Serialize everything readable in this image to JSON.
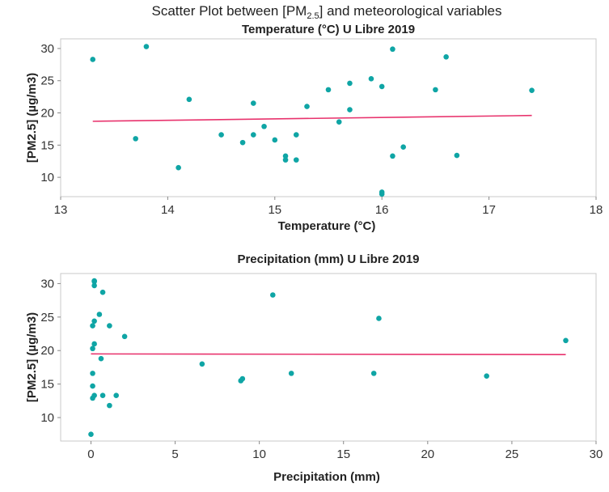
{
  "figure": {
    "title_prefix": "Scatter Plot between [PM",
    "title_subscript": "2.5",
    "title_suffix": "] and meteorological variables"
  },
  "chart_data": [
    {
      "type": "scatter",
      "title": "Temperature (°C) U Libre 2019",
      "xlabel": "Temperature (°C)",
      "ylabel": "[PM2.5] (µg/m3)",
      "xlim": [
        13,
        18
      ],
      "ylim": [
        7,
        31.5
      ],
      "xticks": [
        13,
        14,
        15,
        16,
        17,
        18
      ],
      "yticks": [
        10,
        15,
        20,
        25,
        30
      ],
      "point_color": "#0fa5a5",
      "trend_color": "#e8336d",
      "trend": {
        "x": [
          13.3,
          17.4
        ],
        "y": [
          18.7,
          19.6
        ]
      },
      "x": [
        13.3,
        13.7,
        13.8,
        14.1,
        14.2,
        14.5,
        14.7,
        14.8,
        14.8,
        14.9,
        15.0,
        15.1,
        15.1,
        15.2,
        15.2,
        15.3,
        15.5,
        15.6,
        15.7,
        15.7,
        15.9,
        16.0,
        16.0,
        16.0,
        16.1,
        16.1,
        16.2,
        16.5,
        16.6,
        16.7,
        17.4
      ],
      "y": [
        28.3,
        16.0,
        30.3,
        11.5,
        22.1,
        16.6,
        15.4,
        16.6,
        21.5,
        17.9,
        15.8,
        12.7,
        13.3,
        12.7,
        16.6,
        21.0,
        23.6,
        18.6,
        24.6,
        20.5,
        25.3,
        7.4,
        7.7,
        24.1,
        13.3,
        29.9,
        14.7,
        23.6,
        28.7,
        13.4,
        23.5
      ]
    },
    {
      "type": "scatter",
      "title": "Precipitation (mm) U Libre 2019",
      "xlabel": "Precipitation (mm)",
      "ylabel": "[PM2.5] (µg/m3)",
      "xlim": [
        -1.8,
        30
      ],
      "ylim": [
        6.5,
        31.5
      ],
      "xticks": [
        0,
        5,
        10,
        15,
        20,
        25,
        30
      ],
      "yticks": [
        10,
        15,
        20,
        25,
        30
      ],
      "point_color": "#0fa5a5",
      "trend_color": "#e8336d",
      "trend": {
        "x": [
          0.0,
          28.2
        ],
        "y": [
          19.5,
          19.4
        ]
      },
      "x": [
        0.0,
        0.1,
        0.1,
        0.1,
        0.1,
        0.1,
        0.2,
        0.2,
        0.2,
        0.2,
        0.2,
        0.2,
        0.5,
        0.6,
        0.7,
        0.7,
        1.1,
        1.1,
        1.5,
        2.0,
        6.6,
        8.9,
        9.0,
        10.8,
        11.9,
        16.8,
        17.1,
        23.5,
        28.2
      ],
      "y": [
        7.5,
        12.9,
        14.7,
        16.6,
        20.3,
        23.7,
        13.3,
        21.0,
        24.4,
        29.7,
        30.4,
        30.3,
        25.4,
        18.8,
        28.7,
        13.3,
        11.8,
        23.7,
        13.3,
        22.1,
        18.0,
        15.5,
        15.8,
        28.3,
        16.6,
        16.6,
        24.8,
        16.2,
        21.5
      ]
    }
  ]
}
